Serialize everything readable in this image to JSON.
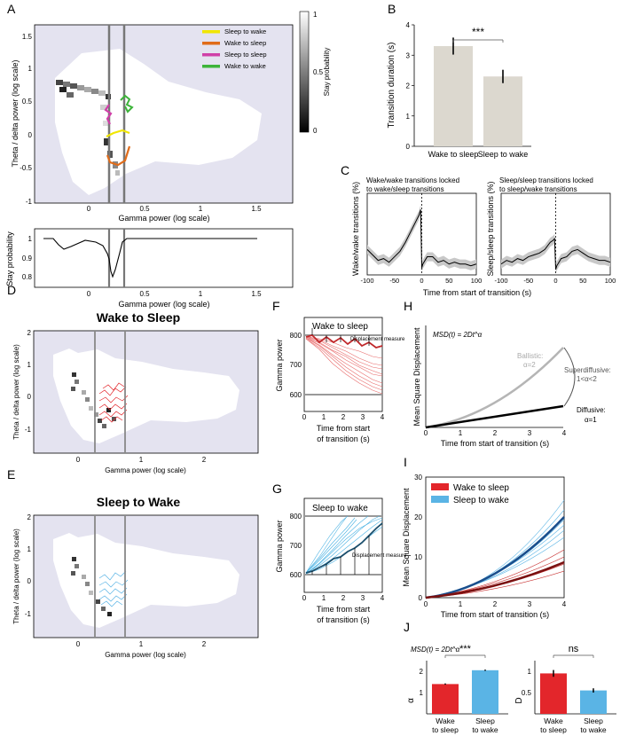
{
  "figure": {
    "panel_letters": [
      "A",
      "B",
      "C",
      "D",
      "E",
      "F",
      "G",
      "H",
      "I",
      "J"
    ]
  },
  "colors": {
    "bg_purple": "#e4e3f0",
    "sleep_to_wake": "#f1e600",
    "wake_to_sleep": "#e06c1a",
    "sleep_to_sleep": "#d040a8",
    "wake_to_wake": "#3db43a",
    "red": "#e3262b",
    "blue": "#5ab4e5",
    "bar_grey": "#dcd8cf"
  },
  "panelA": {
    "xlabel": "Gamma power (log scale)",
    "ylabel": "Theta / delta power (log scale)",
    "xticks": [
      "0",
      "0.5",
      "1",
      "1.5"
    ],
    "yticks": [
      "1.5",
      "1",
      "0.5",
      "0",
      "-0.5",
      "-1"
    ],
    "legend": [
      "Sleep to wake",
      "Wake to sleep",
      "Sleep to sleep",
      "Wake to wake"
    ],
    "colorbar_label": "Stay probability",
    "colorbar_ticks": [
      "1",
      "0.5",
      "0"
    ],
    "sub_ylabel": "Stay probability",
    "sub_yticks": [
      "1",
      "0.9",
      "0.8"
    ],
    "sub_xticks": [
      "0",
      "0.5",
      "1",
      "1.5"
    ],
    "sub_xlabel": "Gamma power (log scale)"
  },
  "panelC": {
    "left_title_1": "Wake/wake transitions locked",
    "left_title_2": "to wake/sleep transitions",
    "right_title_1": "Sleep/sleep transitions locked",
    "right_title_2": "to sleep/wake transitions",
    "left_ylabel": "Wake/wake transitions (%)",
    "right_ylabel": "Sleep/sleep transitions (%)",
    "xlabel": "Time from start of transition (s)",
    "xticks": [
      "-100",
      "-50",
      "0",
      "50",
      "100"
    ]
  },
  "panelD": {
    "title": "Wake to Sleep",
    "xlabel": "Gamma power (log scale)",
    "ylabel": "Theta / delta power (log scale)",
    "xticks": [
      "0",
      "1",
      "2"
    ],
    "yticks": [
      "2",
      "1",
      "0",
      "-1"
    ]
  },
  "panelE": {
    "title": "Sleep to Wake",
    "xlabel": "Gamma power (log scale)",
    "ylabel": "Theta / delta power (log scale)",
    "xticks": [
      "0",
      "1",
      "2"
    ],
    "yticks": [
      "2",
      "1",
      "0",
      "-1"
    ]
  },
  "panelF": {
    "title": "Wake to sleep",
    "annotation": "Displacement measure",
    "ylabel": "Gamma power",
    "yticks": [
      "800",
      "700",
      "600"
    ],
    "xticks": [
      "0",
      "1",
      "2",
      "3",
      "4"
    ],
    "xlabel_1": "Time from start",
    "xlabel_2": "of transition (s)"
  },
  "panelG": {
    "title": "Sleep to wake",
    "annotation": "Displacement measure",
    "ylabel": "Gamma power",
    "yticks": [
      "800",
      "700",
      "600"
    ],
    "xticks": [
      "0",
      "1",
      "2",
      "3",
      "4"
    ],
    "xlabel_1": "Time from start",
    "xlabel_2": "of transition (s)"
  },
  "panelH": {
    "formula": "MSD(t) = 2Dt^α",
    "ballistic_1": "Ballistic:",
    "ballistic_2": "α=2",
    "super_1": "Superdiffusive:",
    "super_2": "1<α<2",
    "diff_1": "Diffusive:",
    "diff_2": "α=1",
    "ylabel": "Mean Square Displacement",
    "xlabel": "Time from start of transition (s)",
    "xticks": [
      "0",
      "1",
      "2",
      "3",
      "4"
    ]
  },
  "panelI": {
    "legend": [
      "Wake to sleep",
      "Sleep to wake"
    ],
    "ylabel": "Mean Square Displacement",
    "xlabel": "Time from start of transition (s)",
    "xticks": [
      "0",
      "1",
      "2",
      "3",
      "4"
    ],
    "yticks": [
      "30",
      "20",
      "10",
      "0"
    ]
  },
  "panelJ": {
    "formula": "MSD(t) = 2Dt^α",
    "left_ylabel": "α",
    "right_ylabel": "D",
    "left_sig": "***",
    "right_sig": "ns",
    "left_yticks": [
      "2",
      "1"
    ],
    "right_yticks": [
      "1",
      "0.5"
    ]
  },
  "chart_data": [
    {
      "id": "B",
      "type": "bar",
      "title": "",
      "categories": [
        "Wake to sleep",
        "Sleep to wake"
      ],
      "values": [
        3.3,
        2.3
      ],
      "errors": [
        0.28,
        0.22
      ],
      "ylabel": "Transition duration (s)",
      "ylim": [
        0,
        4
      ],
      "yticks": [
        "0",
        "1",
        "2",
        "3",
        "4"
      ],
      "significance": "***"
    },
    {
      "id": "C-left",
      "type": "line",
      "x": [
        -100,
        -90,
        -80,
        -70,
        -60,
        -50,
        -40,
        -30,
        -20,
        -10,
        -5,
        -2,
        0,
        2,
        10,
        20,
        30,
        40,
        50,
        60,
        70,
        80,
        90,
        100
      ],
      "values": [
        1.4,
        1.1,
        0.8,
        0.9,
        0.7,
        1.0,
        1.3,
        1.8,
        2.4,
        3.0,
        3.3,
        3.6,
        0.4,
        0.6,
        1.0,
        1.0,
        0.7,
        0.8,
        0.6,
        0.7,
        0.6,
        0.6,
        0.5,
        0.6
      ],
      "ylim": [
        0,
        4.5
      ],
      "ylabel": "Wake/wake transitions (%)"
    },
    {
      "id": "C-right",
      "type": "line",
      "x": [
        -100,
        -90,
        -80,
        -70,
        -60,
        -50,
        -40,
        -30,
        -20,
        -10,
        -5,
        -2,
        0,
        2,
        10,
        20,
        30,
        40,
        50,
        60,
        70,
        80,
        90,
        100
      ],
      "values": [
        0.6,
        0.8,
        0.7,
        0.9,
        0.8,
        1.0,
        1.1,
        1.2,
        1.4,
        1.8,
        1.9,
        2.0,
        0.3,
        0.5,
        0.9,
        1.0,
        1.3,
        1.4,
        1.2,
        1.0,
        0.9,
        0.8,
        0.8,
        0.7
      ],
      "ylim": [
        0,
        4.5
      ],
      "ylabel": "Sleep/sleep transitions (%)"
    },
    {
      "id": "J-alpha",
      "type": "bar",
      "categories": [
        "Wake to sleep",
        "Sleep to wake"
      ],
      "values": [
        1.4,
        2.05
      ],
      "errors": [
        0.03,
        0.03
      ],
      "ylabel": "α",
      "ylim": [
        0,
        2.5
      ],
      "significance": "***"
    },
    {
      "id": "J-D",
      "type": "bar",
      "categories": [
        "Wake to sleep",
        "Sleep to wake"
      ],
      "values": [
        0.95,
        0.55
      ],
      "errors": [
        0.08,
        0.05
      ],
      "ylabel": "D",
      "ylim": [
        0,
        1.25
      ],
      "significance": "ns"
    }
  ]
}
